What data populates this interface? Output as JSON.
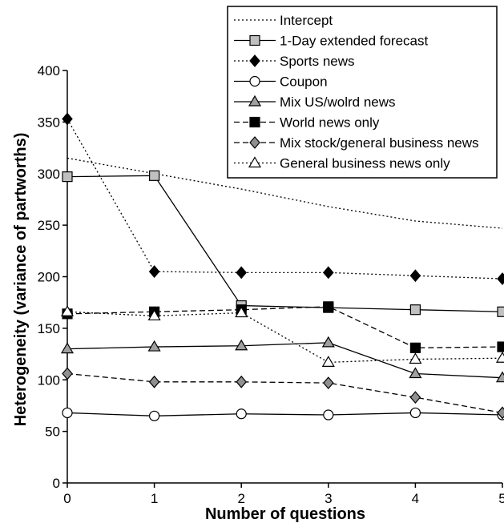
{
  "chart_data": {
    "type": "line",
    "title": "",
    "xlabel": "Number of questions",
    "ylabel": "Heterogeneity (variance of partworths)",
    "x": [
      0,
      1,
      2,
      3,
      4,
      5
    ],
    "xticks": [
      "0",
      "1",
      "2",
      "3",
      "4",
      "5"
    ],
    "xlim": [
      0,
      5
    ],
    "ylim": [
      0,
      400
    ],
    "yticks": [
      "0",
      "50",
      "100",
      "150",
      "200",
      "250",
      "300",
      "350",
      "400"
    ],
    "grid": false,
    "legend_position": "top-right",
    "series": [
      {
        "name": "Intercept",
        "values": [
          315,
          300,
          285,
          268,
          254,
          247
        ],
        "line": "dotted",
        "marker": "none",
        "color": "#000000"
      },
      {
        "name": "1-Day extended forecast",
        "values": [
          297,
          298,
          172,
          170,
          168,
          166
        ],
        "line": "solid",
        "marker": "square",
        "marker_fill": "#c0c0c0",
        "color": "#000000"
      },
      {
        "name": "Sports news",
        "values": [
          353,
          205,
          204,
          204,
          201,
          198
        ],
        "line": "dotted",
        "marker": "diamond",
        "marker_fill": "#000000",
        "color": "#000000"
      },
      {
        "name": "Coupon",
        "values": [
          68,
          65,
          67,
          66,
          68,
          66
        ],
        "line": "solid",
        "marker": "circle",
        "marker_fill": "#ffffff",
        "color": "#000000"
      },
      {
        "name": "Mix US/wolrd news",
        "values": [
          130,
          132,
          133,
          136,
          106,
          102
        ],
        "line": "solid",
        "marker": "triangle",
        "marker_fill": "#a0a0a0",
        "color": "#000000"
      },
      {
        "name": "World news only",
        "values": [
          164,
          166,
          168,
          171,
          131,
          132
        ],
        "line": "dashed",
        "marker": "square",
        "marker_fill": "#000000",
        "color": "#000000"
      },
      {
        "name": "Mix stock/general business news",
        "values": [
          106,
          98,
          98,
          97,
          83,
          68
        ],
        "line": "dashed",
        "marker": "diamond",
        "marker_fill": "#909090",
        "color": "#000000"
      },
      {
        "name": "General business news only",
        "values": [
          166,
          162,
          165,
          117,
          120,
          121
        ],
        "line": "dotted",
        "marker": "triangle",
        "marker_fill": "#ffffff",
        "color": "#000000"
      }
    ]
  }
}
